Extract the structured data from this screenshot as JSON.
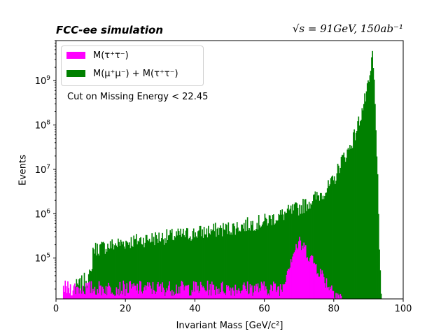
{
  "chart_data": {
    "type": "histogram",
    "title_left": "FCC-ee simulation",
    "title_right": "√s = 91GeV, 150ab⁻¹",
    "xlabel": "Invariant Mass [GeV/c²]",
    "ylabel": "Events",
    "xlim": [
      0,
      100
    ],
    "ylim": [
      12000,
      8000000000
    ],
    "yscale": "log",
    "x_ticks": [
      0,
      20,
      40,
      60,
      80,
      100
    ],
    "y_ticks": [
      {
        "value": 100000,
        "base": "10",
        "exp": "5"
      },
      {
        "value": 1000000,
        "base": "10",
        "exp": "6"
      },
      {
        "value": 10000000,
        "base": "10",
        "exp": "7"
      },
      {
        "value": 100000000,
        "base": "10",
        "exp": "8"
      },
      {
        "value": 1000000000,
        "base": "10",
        "exp": "9"
      }
    ],
    "annotation": "Cut on Missing Energy < 22.45",
    "legend_position": "upper-left",
    "series": [
      {
        "name": "M(τ⁺τ⁻)",
        "color": "#ff00ff",
        "x": [
          2,
          3,
          4,
          5,
          6,
          7,
          8,
          10,
          20,
          40,
          60,
          65,
          66,
          67,
          68,
          69,
          70,
          71,
          72,
          73,
          74,
          75,
          76,
          77,
          78,
          80,
          82
        ],
        "y": [
          20000,
          20000,
          20000,
          20000,
          20000,
          20000,
          20000,
          20000,
          20000,
          20000,
          20000,
          20000,
          40000,
          70000,
          120000,
          170000,
          200000,
          170000,
          140000,
          100000,
          80000,
          60000,
          45000,
          35000,
          25000,
          18000,
          12000
        ]
      },
      {
        "name": "M(μ⁺μ⁻) + M(τ⁺τ⁻)",
        "color": "#008000",
        "x": [
          5,
          7,
          8,
          9,
          10,
          10.5,
          15,
          20,
          25,
          30,
          35,
          40,
          45,
          50,
          55,
          60,
          65,
          70,
          72,
          75,
          78,
          80,
          82,
          84,
          86,
          88,
          89,
          90,
          90.5,
          91,
          91.5,
          92,
          92.5,
          93,
          93.5
        ],
        "y": [
          20000,
          25000,
          30000,
          35000,
          40000,
          150000,
          180000,
          220000,
          250000,
          280000,
          310000,
          350000,
          400000,
          450000,
          540000,
          650000,
          900000,
          1300000,
          1600000,
          2300000,
          3500000,
          5500000,
          15000000,
          25000000,
          60000000,
          200000000,
          400000000,
          800000000,
          1500000000,
          4000000000,
          800000000,
          100000000,
          5000000,
          100000,
          20000
        ]
      }
    ]
  }
}
